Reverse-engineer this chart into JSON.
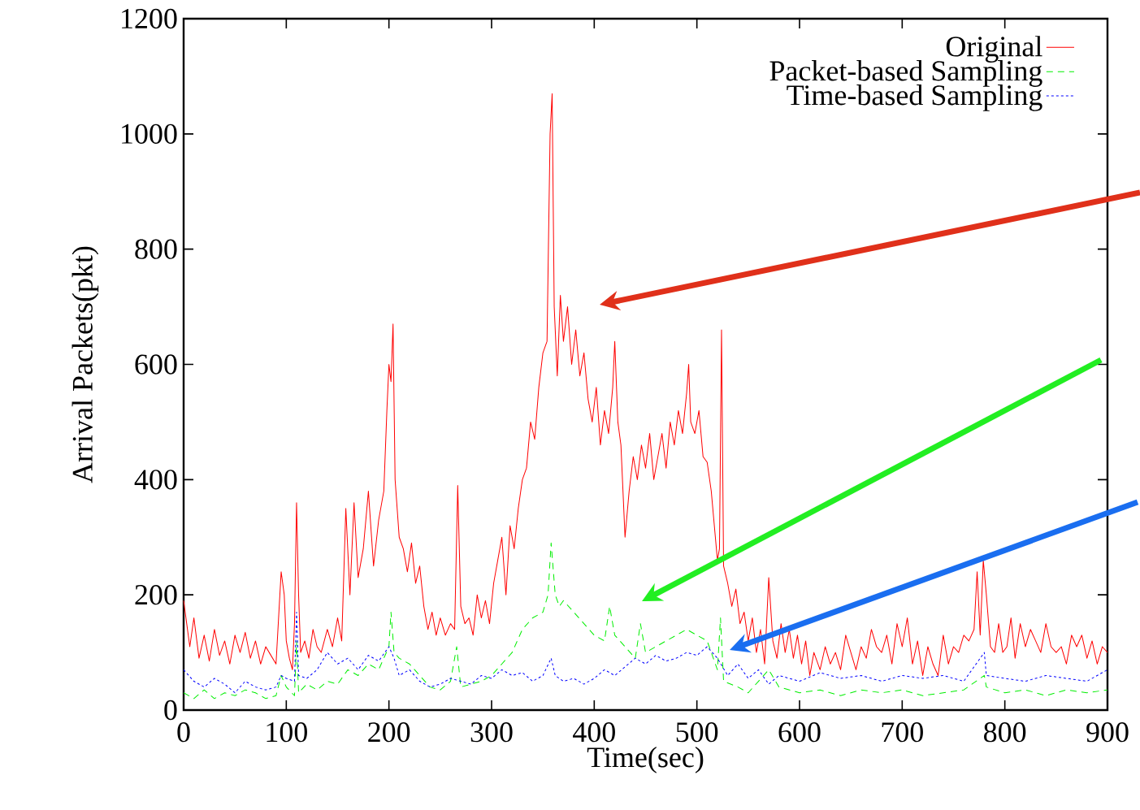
{
  "chart_data": {
    "type": "line",
    "xlabel": "Time(sec)",
    "ylabel": "Arrival Packets(pkt)",
    "xlim": [
      0,
      900
    ],
    "ylim": [
      0,
      1200
    ],
    "xticks": [
      0,
      100,
      200,
      300,
      400,
      500,
      600,
      700,
      800,
      900
    ],
    "yticks": [
      0,
      200,
      400,
      600,
      800,
      1000,
      1200
    ],
    "legend": "top right",
    "series": [
      {
        "name": "Original",
        "color": "#ff0000",
        "line_style": "solid",
        "x": [
          0,
          3,
          6,
          10,
          15,
          20,
          25,
          30,
          35,
          40,
          45,
          50,
          55,
          60,
          65,
          70,
          75,
          80,
          85,
          90,
          95,
          98,
          100,
          103,
          106,
          108,
          110,
          112,
          114,
          118,
          122,
          126,
          130,
          134,
          140,
          145,
          150,
          154,
          158,
          162,
          166,
          170,
          175,
          180,
          185,
          190,
          195,
          198,
          200,
          202,
          204,
          206,
          210,
          214,
          218,
          222,
          226,
          230,
          234,
          238,
          242,
          246,
          250,
          255,
          260,
          264,
          267,
          270,
          274,
          278,
          282,
          286,
          290,
          294,
          298,
          302,
          306,
          310,
          314,
          318,
          322,
          326,
          330,
          334,
          338,
          342,
          346,
          350,
          354,
          357,
          359,
          361,
          364,
          367,
          370,
          374,
          378,
          382,
          386,
          390,
          394,
          398,
          402,
          406,
          410,
          414,
          418,
          420,
          423,
          426,
          430,
          434,
          438,
          442,
          446,
          450,
          454,
          458,
          462,
          466,
          470,
          474,
          478,
          482,
          486,
          490,
          492,
          494,
          498,
          502,
          506,
          510,
          514,
          518,
          520,
          522,
          524,
          526,
          530,
          534,
          538,
          542,
          546,
          550,
          554,
          558,
          562,
          566,
          570,
          574,
          578,
          582,
          586,
          590,
          594,
          598,
          602,
          606,
          610,
          614,
          620,
          625,
          630,
          635,
          640,
          645,
          650,
          655,
          660,
          665,
          670,
          675,
          680,
          685,
          690,
          695,
          700,
          705,
          710,
          715,
          720,
          725,
          730,
          735,
          740,
          745,
          750,
          755,
          760,
          765,
          770,
          773,
          776,
          779,
          782,
          786,
          790,
          794,
          798,
          802,
          806,
          810,
          815,
          820,
          825,
          830,
          835,
          840,
          845,
          850,
          855,
          860,
          865,
          870,
          875,
          880,
          885,
          890,
          895,
          900
        ],
        "values": [
          190,
          150,
          110,
          160,
          90,
          130,
          85,
          140,
          95,
          120,
          80,
          130,
          100,
          135,
          90,
          120,
          80,
          110,
          95,
          80,
          240,
          200,
          120,
          90,
          70,
          150,
          360,
          200,
          100,
          120,
          90,
          140,
          110,
          100,
          140,
          110,
          160,
          120,
          350,
          200,
          360,
          230,
          280,
          380,
          250,
          330,
          380,
          520,
          600,
          570,
          670,
          400,
          300,
          280,
          240,
          290,
          220,
          250,
          180,
          140,
          170,
          130,
          160,
          130,
          150,
          140,
          390,
          180,
          150,
          160,
          130,
          200,
          160,
          190,
          150,
          220,
          260,
          300,
          200,
          320,
          280,
          350,
          400,
          420,
          500,
          470,
          560,
          620,
          640,
          1000,
          1070,
          700,
          580,
          720,
          640,
          700,
          600,
          660,
          580,
          620,
          540,
          500,
          560,
          460,
          520,
          480,
          560,
          640,
          500,
          460,
          300,
          380,
          440,
          400,
          460,
          420,
          480,
          400,
          440,
          480,
          420,
          500,
          460,
          520,
          480,
          550,
          600,
          500,
          480,
          520,
          440,
          430,
          380,
          300,
          260,
          280,
          660,
          250,
          220,
          180,
          210,
          150,
          170,
          120,
          160,
          100,
          140,
          80,
          230,
          120,
          90,
          150,
          100,
          140,
          90,
          130,
          80,
          120,
          60,
          100,
          70,
          110,
          80,
          100,
          70,
          130,
          100,
          70,
          110,
          90,
          140,
          110,
          100,
          130,
          80,
          150,
          110,
          160,
          80,
          120,
          60,
          110,
          80,
          60,
          130,
          80,
          110,
          100,
          130,
          120,
          140,
          240,
          130,
          260,
          200,
          110,
          100,
          150,
          100,
          110,
          160,
          90,
          150,
          110,
          140,
          120,
          100,
          150,
          110,
          100,
          110,
          80,
          130,
          110,
          130,
          90,
          120,
          80,
          110,
          100
        ]
      },
      {
        "name": "Packet-based Sampling",
        "color": "#00ee00",
        "line_style": "dashed",
        "x": [
          0,
          10,
          20,
          30,
          40,
          50,
          60,
          70,
          80,
          90,
          95,
          100,
          108,
          110,
          112,
          120,
          130,
          140,
          150,
          160,
          170,
          180,
          190,
          200,
          202,
          205,
          210,
          220,
          230,
          240,
          250,
          260,
          266,
          270,
          280,
          290,
          300,
          310,
          320,
          330,
          340,
          350,
          355,
          358,
          362,
          366,
          370,
          380,
          390,
          400,
          410,
          415,
          420,
          430,
          440,
          445,
          450,
          460,
          470,
          480,
          490,
          500,
          510,
          520,
          523,
          526,
          540,
          550,
          560,
          570,
          580,
          600,
          620,
          640,
          660,
          680,
          700,
          720,
          740,
          760,
          780,
          782,
          800,
          820,
          840,
          860,
          880,
          900
        ],
        "values": [
          30,
          20,
          35,
          20,
          30,
          25,
          35,
          30,
          20,
          25,
          60,
          40,
          25,
          120,
          30,
          45,
          35,
          50,
          45,
          70,
          60,
          80,
          70,
          110,
          170,
          100,
          90,
          80,
          60,
          40,
          35,
          50,
          110,
          40,
          45,
          50,
          60,
          80,
          100,
          140,
          160,
          170,
          200,
          290,
          200,
          180,
          190,
          170,
          150,
          130,
          120,
          180,
          130,
          110,
          90,
          150,
          100,
          110,
          120,
          130,
          140,
          130,
          120,
          70,
          160,
          50,
          40,
          30,
          50,
          70,
          40,
          30,
          35,
          25,
          35,
          30,
          35,
          25,
          30,
          35,
          60,
          40,
          30,
          35,
          25,
          35,
          30,
          35
        ]
      },
      {
        "name": "Time-based Sampling",
        "color": "#0000ff",
        "line_style": "dotted",
        "x": [
          0,
          10,
          20,
          30,
          40,
          50,
          60,
          70,
          80,
          90,
          95,
          100,
          108,
          110,
          112,
          120,
          130,
          140,
          150,
          160,
          170,
          180,
          190,
          200,
          205,
          210,
          220,
          230,
          240,
          250,
          260,
          270,
          280,
          290,
          300,
          310,
          320,
          330,
          340,
          350,
          358,
          362,
          370,
          380,
          390,
          400,
          410,
          420,
          430,
          440,
          450,
          460,
          470,
          480,
          490,
          500,
          510,
          520,
          530,
          540,
          550,
          560,
          570,
          580,
          600,
          620,
          640,
          660,
          680,
          700,
          720,
          740,
          760,
          780,
          782,
          800,
          820,
          840,
          860,
          880,
          900
        ],
        "values": [
          70,
          50,
          40,
          55,
          45,
          30,
          50,
          40,
          35,
          40,
          60,
          55,
          50,
          170,
          60,
          55,
          70,
          100,
          80,
          90,
          70,
          95,
          85,
          110,
          90,
          60,
          70,
          50,
          40,
          45,
          55,
          50,
          45,
          60,
          55,
          70,
          60,
          65,
          50,
          60,
          90,
          60,
          50,
          55,
          45,
          55,
          70,
          60,
          75,
          90,
          80,
          95,
          85,
          90,
          100,
          95,
          110,
          90,
          60,
          80,
          55,
          70,
          45,
          60,
          50,
          65,
          55,
          60,
          50,
          60,
          55,
          60,
          50,
          100,
          60,
          55,
          50,
          60,
          55,
          50,
          70
        ]
      }
    ]
  }
}
